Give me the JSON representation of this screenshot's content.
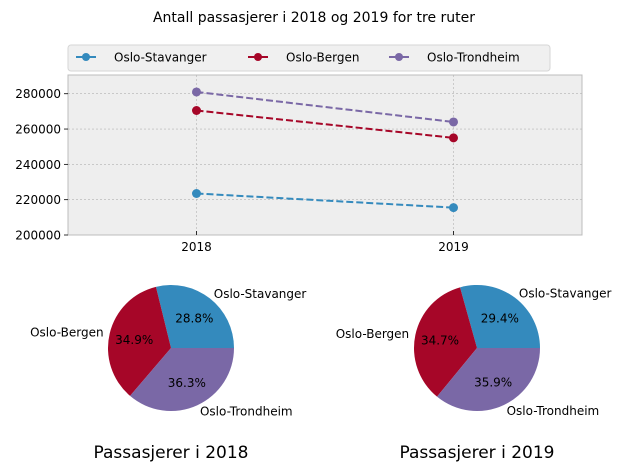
{
  "chart_data": [
    {
      "type": "line",
      "title": "Antall passasjerer i 2018 og 2019 for tre ruter",
      "xlabel": "",
      "ylabel": "",
      "categories": [
        "2018",
        "2019"
      ],
      "series": [
        {
          "name": "Oslo-Stavanger",
          "values": [
            223500,
            215500
          ],
          "color": "#348abd"
        },
        {
          "name": "Oslo-Bergen",
          "values": [
            270500,
            255000
          ],
          "color": "#a60628"
        },
        {
          "name": "Oslo-Trondheim",
          "values": [
            281000,
            264000
          ],
          "color": "#7a68a6"
        }
      ],
      "ylim": [
        200000,
        290600
      ],
      "xlim": [
        -0.5,
        1.5
      ],
      "yticks": [
        "200000",
        "220000",
        "240000",
        "260000",
        "280000"
      ],
      "ytick_values": [
        200000,
        220000,
        240000,
        260000,
        280000
      ],
      "grid": true,
      "line_style": "dashed",
      "marker": "circle",
      "legend_position": "top",
      "background": "#eeeeee"
    },
    {
      "type": "pie",
      "title": "Passasjerer i 2018",
      "labels": [
        "Oslo-Stavanger",
        "Oslo-Bergen",
        "Oslo-Trondheim"
      ],
      "values": [
        223500,
        270500,
        281000
      ],
      "percent_labels": [
        "28.8%",
        "34.9%",
        "36.3%"
      ],
      "colors": [
        "#348abd",
        "#a60628",
        "#7a68a6"
      ]
    },
    {
      "type": "pie",
      "title": "Passasjerer i 2019",
      "labels": [
        "Oslo-Stavanger",
        "Oslo-Bergen",
        "Oslo-Trondheim"
      ],
      "values": [
        215500,
        255000,
        264000
      ],
      "percent_labels": [
        "29.4%",
        "34.7%",
        "35.9%"
      ],
      "colors": [
        "#348abd",
        "#a60628",
        "#7a68a6"
      ]
    }
  ]
}
